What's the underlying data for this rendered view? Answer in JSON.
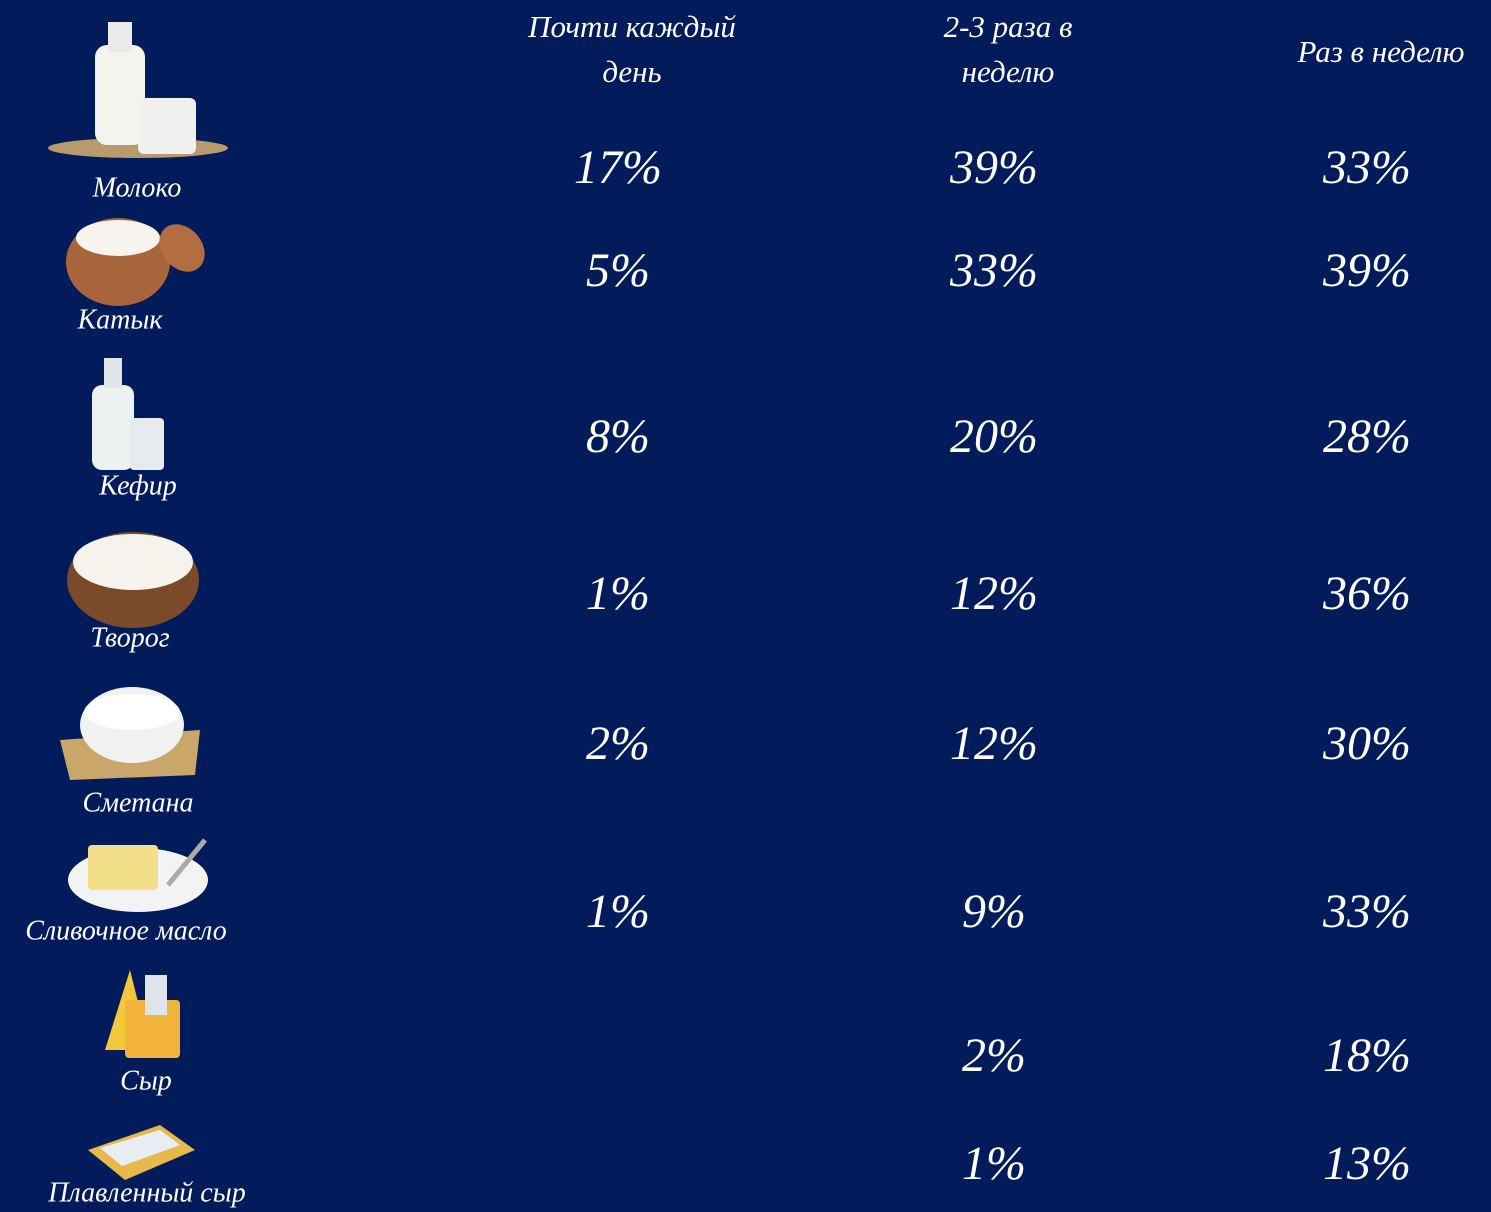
{
  "header": {
    "columns": [
      [
        "Почти каждый",
        "день"
      ],
      [
        "2-3 раза в",
        "неделю"
      ],
      [
        "Раз в неделю"
      ]
    ]
  },
  "rows": [
    {
      "name": "Молоко",
      "values": [
        "17%",
        "39%",
        "33%"
      ]
    },
    {
      "name": "Катык",
      "values": [
        "5%",
        "33%",
        "39%"
      ]
    },
    {
      "name": "Кефир",
      "values": [
        "8%",
        "20%",
        "28%"
      ]
    },
    {
      "name": "Творог",
      "values": [
        "1%",
        "12%",
        "36%"
      ]
    },
    {
      "name": "Сметана",
      "values": [
        "2%",
        "12%",
        "30%"
      ]
    },
    {
      "name": "Сливочное масло",
      "values": [
        "1%",
        "9%",
        "33%"
      ]
    },
    {
      "name": "Сыр",
      "values": [
        null,
        "2%",
        "18%"
      ]
    },
    {
      "name": "Плавленный сыр",
      "values": [
        null,
        "1%",
        "13%"
      ]
    }
  ]
}
